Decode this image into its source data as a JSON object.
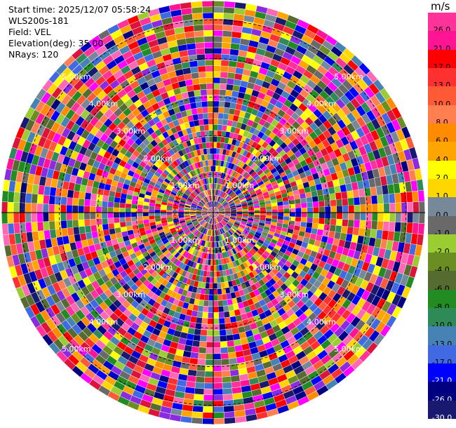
{
  "header": {
    "start_time": "Start time: 2025/12/07 05:58:24",
    "instrument": "WLS200s-181",
    "field": "Field: VEL",
    "elevation": "Elevation(deg): 35.00",
    "nrays": "NRays: 120"
  },
  "colorbar": {
    "unit": "m/s",
    "levels": [
      {
        "label": "26.0",
        "color": "#ff3399"
      },
      {
        "label": "21.0",
        "color": "#ff1493"
      },
      {
        "label": "17.0",
        "color": "#ff0000"
      },
      {
        "label": "13.0",
        "color": "#ff3030"
      },
      {
        "label": "10.0",
        "color": "#ff5a36"
      },
      {
        "label": "8.0",
        "color": "#ff7f50"
      },
      {
        "label": "6.0",
        "color": "#ff8c00"
      },
      {
        "label": "4.0",
        "color": "#ffa500"
      },
      {
        "label": "2.0",
        "color": "#ffff00"
      },
      {
        "label": "1.0",
        "color": "#ffd700"
      },
      {
        "label": "0.0",
        "color": "#778899"
      },
      {
        "label": "-1.0",
        "color": "#696969"
      },
      {
        "label": "-2.0",
        "color": "#9acd32"
      },
      {
        "label": "-4.0",
        "color": "#6b8e23"
      },
      {
        "label": "-6.0",
        "color": "#556b2f"
      },
      {
        "label": "-8.0",
        "color": "#228b22"
      },
      {
        "label": "-10.0",
        "color": "#2e8b57"
      },
      {
        "label": "-13.0",
        "color": "#4682b4"
      },
      {
        "label": "-17.0",
        "color": "#4169e1"
      },
      {
        "label": "-21.0",
        "color": "#0000ff"
      },
      {
        "label": "-26.0",
        "color": "#000080"
      },
      {
        "label": "-30.0",
        "color": "#191970"
      }
    ]
  },
  "chart_data": {
    "type": "heatmap",
    "projection": "polar-ppi",
    "field": "VEL",
    "n_rays": 120,
    "range_ring_labels": [
      "1.00km",
      "2.00km",
      "3.00km",
      "4.00km",
      "5.00km"
    ],
    "range_rings_km": [
      1,
      2,
      3,
      4,
      5
    ],
    "max_range_km": 5.5,
    "range_gates": 36,
    "value_range": [
      -30.0,
      26.0
    ],
    "note_values": "noisy velocity field spanning full color scale"
  }
}
